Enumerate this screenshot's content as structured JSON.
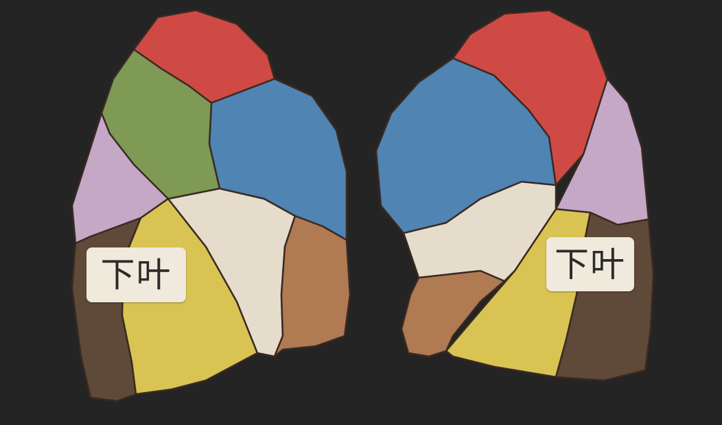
{
  "labels": {
    "left_lung": "下叶",
    "right_lung": "下叶"
  },
  "colors": {
    "background": "#252424",
    "apical": "#cf4a45",
    "posterior_green": "#7e9a55",
    "anterior_blue": "#4f84b3",
    "lateral_lilac": "#c4a8c6",
    "superior_cream": "#e6dccb",
    "medial_brown": "#b07a52",
    "basal_yellow": "#d9c453",
    "posterior_basal_dark": "#5f4a3a",
    "label_box": "#efeadb"
  }
}
